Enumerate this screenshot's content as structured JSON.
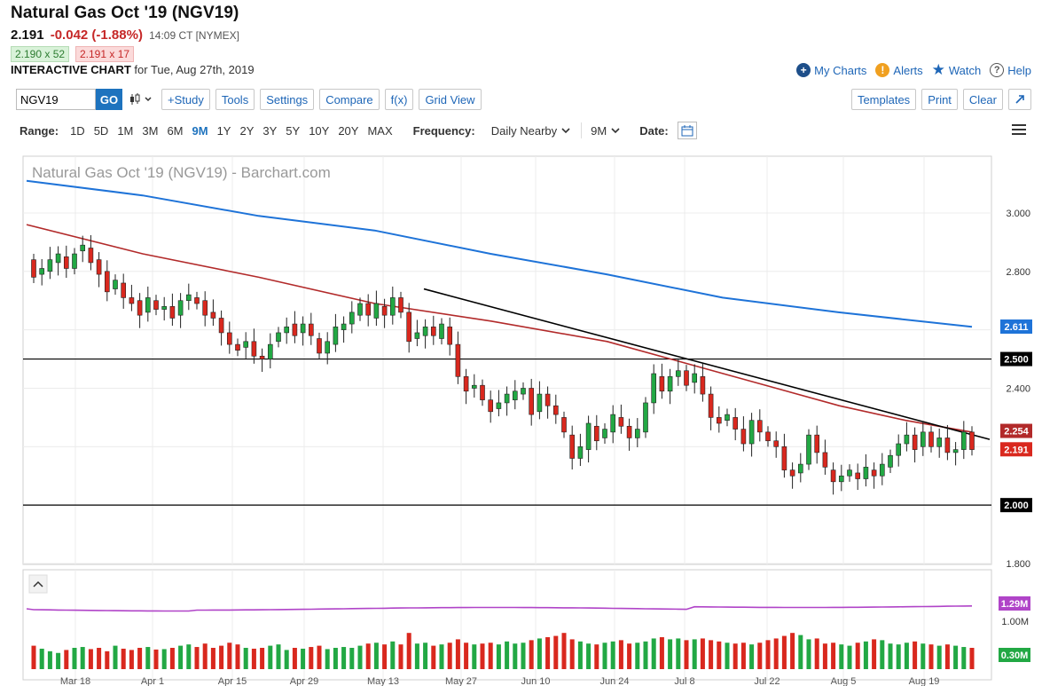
{
  "quote": {
    "title": "Natural Gas Oct '19 (NGV19)",
    "last": "2.191",
    "change": "-0.042 (-1.88%)",
    "time": "14:09 CT [NYMEX]",
    "bid": "2.190 x 52",
    "ask": "2.191 x 17",
    "chart_label": "INTERACTIVE CHART",
    "chart_date": "for Tue, Aug 27th, 2019"
  },
  "links": {
    "my_charts": "My Charts",
    "alerts": "Alerts",
    "watch": "Watch",
    "help": "Help"
  },
  "toolbar": {
    "symbol": "NGV19",
    "go": "GO",
    "study": "+Study",
    "tools": "Tools",
    "settings": "Settings",
    "compare": "Compare",
    "fx": "f(x)",
    "grid_view": "Grid View",
    "templates": "Templates",
    "print": "Print",
    "clear": "Clear"
  },
  "range": {
    "label": "Range:",
    "options": [
      "1D",
      "5D",
      "1M",
      "3M",
      "6M",
      "9M",
      "1Y",
      "2Y",
      "3Y",
      "5Y",
      "10Y",
      "20Y",
      "MAX"
    ],
    "active": "9M",
    "frequency_label": "Frequency:",
    "frequency": "Daily Nearby",
    "period": "9M",
    "date_label": "Date:"
  },
  "colors": {
    "up": "#22a844",
    "down": "#d9281e",
    "ma_slow": "#1e73d8",
    "ma_fast": "#b22a2a",
    "volume_ma": "#b044c8",
    "link": "#1e66b7",
    "bg": "#ffffff"
  },
  "chart_data": {
    "type": "candlestick",
    "title": "Natural Gas Oct '19 (NGV19) - Barchart.com",
    "y_ticks": [
      "1.800",
      "2.000",
      "2.200",
      "2.400",
      "2.600",
      "2.800",
      "3.000"
    ],
    "ylim": [
      1.8,
      3.0
    ],
    "x_ticks": [
      "Mar 18",
      "Apr 1",
      "Apr 15",
      "Apr 29",
      "May 13",
      "May 27",
      "Jun 10",
      "Jun 24",
      "Jul 8",
      "Jul 22",
      "Aug 5",
      "Aug 19"
    ],
    "price_labels": {
      "ma_200": "2.611",
      "level_high": "2.500",
      "ma_50": "2.254",
      "last": "2.191",
      "level_low": "2.000"
    },
    "horizontal_lines": [
      2.5,
      2.0
    ],
    "trendline": {
      "from": [
        "May 17",
        2.74
      ],
      "to": [
        "Aug 27",
        2.225
      ]
    },
    "candles": [
      [
        2.84,
        2.78
      ],
      [
        2.79,
        2.81
      ],
      [
        2.8,
        2.84
      ],
      [
        2.83,
        2.86
      ],
      [
        2.85,
        2.81
      ],
      [
        2.81,
        2.86
      ],
      [
        2.87,
        2.89
      ],
      [
        2.88,
        2.83
      ],
      [
        2.84,
        2.79
      ],
      [
        2.8,
        2.73
      ],
      [
        2.74,
        2.77
      ],
      [
        2.76,
        2.71
      ],
      [
        2.71,
        2.69
      ],
      [
        2.7,
        2.65
      ],
      [
        2.66,
        2.71
      ],
      [
        2.7,
        2.67
      ],
      [
        2.67,
        2.68
      ],
      [
        2.68,
        2.64
      ],
      [
        2.65,
        2.7
      ],
      [
        2.7,
        2.72
      ],
      [
        2.71,
        2.69
      ],
      [
        2.7,
        2.65
      ],
      [
        2.66,
        2.64
      ],
      [
        2.64,
        2.59
      ],
      [
        2.59,
        2.55
      ],
      [
        2.55,
        2.53
      ],
      [
        2.54,
        2.56
      ],
      [
        2.56,
        2.51
      ],
      [
        2.51,
        2.5
      ],
      [
        2.5,
        2.55
      ],
      [
        2.56,
        2.59
      ],
      [
        2.59,
        2.61
      ],
      [
        2.62,
        2.58
      ],
      [
        2.59,
        2.62
      ],
      [
        2.62,
        2.58
      ],
      [
        2.57,
        2.52
      ],
      [
        2.52,
        2.56
      ],
      [
        2.55,
        2.61
      ],
      [
        2.6,
        2.62
      ],
      [
        2.62,
        2.66
      ],
      [
        2.65,
        2.69
      ],
      [
        2.69,
        2.65
      ],
      [
        2.64,
        2.69
      ],
      [
        2.68,
        2.65
      ],
      [
        2.65,
        2.71
      ],
      [
        2.71,
        2.66
      ],
      [
        2.66,
        2.56
      ],
      [
        2.57,
        2.59
      ],
      [
        2.58,
        2.61
      ],
      [
        2.61,
        2.58
      ],
      [
        2.57,
        2.62
      ],
      [
        2.61,
        2.55
      ],
      [
        2.55,
        2.44
      ],
      [
        2.44,
        2.39
      ],
      [
        2.4,
        2.41
      ],
      [
        2.41,
        2.36
      ],
      [
        2.36,
        2.32
      ],
      [
        2.33,
        2.35
      ],
      [
        2.35,
        2.38
      ],
      [
        2.36,
        2.39
      ],
      [
        2.38,
        2.4
      ],
      [
        2.4,
        2.31
      ],
      [
        2.32,
        2.38
      ],
      [
        2.38,
        2.34
      ],
      [
        2.34,
        2.31
      ],
      [
        2.3,
        2.25
      ],
      [
        2.24,
        2.16
      ],
      [
        2.16,
        2.2
      ],
      [
        2.19,
        2.28
      ],
      [
        2.27,
        2.22
      ],
      [
        2.23,
        2.26
      ],
      [
        2.25,
        2.31
      ],
      [
        2.3,
        2.27
      ],
      [
        2.27,
        2.23
      ],
      [
        2.23,
        2.26
      ],
      [
        2.25,
        2.35
      ],
      [
        2.35,
        2.45
      ],
      [
        2.44,
        2.39
      ],
      [
        2.39,
        2.44
      ],
      [
        2.44,
        2.46
      ],
      [
        2.46,
        2.41
      ],
      [
        2.42,
        2.45
      ],
      [
        2.44,
        2.38
      ],
      [
        2.38,
        2.3
      ],
      [
        2.3,
        2.28
      ],
      [
        2.29,
        2.31
      ],
      [
        2.3,
        2.26
      ],
      [
        2.26,
        2.21
      ],
      [
        2.21,
        2.29
      ],
      [
        2.29,
        2.25
      ],
      [
        2.25,
        2.22
      ],
      [
        2.22,
        2.2
      ],
      [
        2.2,
        2.12
      ],
      [
        2.12,
        2.1
      ],
      [
        2.11,
        2.14
      ],
      [
        2.14,
        2.24
      ],
      [
        2.24,
        2.18
      ],
      [
        2.18,
        2.13
      ],
      [
        2.12,
        2.08
      ],
      [
        2.08,
        2.1
      ],
      [
        2.1,
        2.12
      ],
      [
        2.11,
        2.09
      ],
      [
        2.09,
        2.13
      ],
      [
        2.12,
        2.1
      ],
      [
        2.1,
        2.14
      ],
      [
        2.13,
        2.17
      ],
      [
        2.17,
        2.21
      ],
      [
        2.21,
        2.24
      ],
      [
        2.24,
        2.19
      ],
      [
        2.2,
        2.25
      ],
      [
        2.25,
        2.2
      ],
      [
        2.2,
        2.23
      ],
      [
        2.23,
        2.18
      ],
      [
        2.18,
        2.19
      ],
      [
        2.19,
        2.25
      ],
      [
        2.25,
        2.19
      ]
    ],
    "ma_fast": [
      [
        0,
        2.96
      ],
      [
        14,
        2.86
      ],
      [
        28,
        2.78
      ],
      [
        42,
        2.69
      ],
      [
        56,
        2.63
      ],
      [
        70,
        2.56
      ],
      [
        84,
        2.45
      ],
      [
        98,
        2.34
      ],
      [
        106,
        2.29
      ],
      [
        114,
        2.25
      ]
    ],
    "ma_slow": [
      [
        0,
        3.11
      ],
      [
        20,
        3.06
      ],
      [
        40,
        2.99
      ],
      [
        60,
        2.94
      ],
      [
        80,
        2.86
      ],
      [
        100,
        2.79
      ],
      [
        120,
        2.71
      ],
      [
        140,
        2.66
      ],
      [
        163,
        2.61
      ]
    ],
    "volume": {
      "labels": [
        "0.30M",
        "1.00M"
      ],
      "ma_label": "1.29M",
      "bars": [
        0.55,
        0.48,
        0.42,
        0.38,
        0.45,
        0.5,
        0.52,
        0.47,
        0.5,
        0.42,
        0.55,
        0.48,
        0.45,
        0.5,
        0.52,
        0.46,
        0.47,
        0.5,
        0.55,
        0.58,
        0.52,
        0.6,
        0.5,
        0.55,
        0.62,
        0.58,
        0.5,
        0.48,
        0.5,
        0.55,
        0.58,
        0.45,
        0.5,
        0.48,
        0.52,
        0.55,
        0.47,
        0.5,
        0.52,
        0.5,
        0.55,
        0.6,
        0.62,
        0.58,
        0.65,
        0.58,
        0.85,
        0.6,
        0.62,
        0.55,
        0.58,
        0.62,
        0.7,
        0.62,
        0.58,
        0.6,
        0.62,
        0.58,
        0.65,
        0.6,
        0.62,
        0.68,
        0.72,
        0.75,
        0.78,
        0.85,
        0.7,
        0.65,
        0.6,
        0.58,
        0.62,
        0.65,
        0.68,
        0.6,
        0.62,
        0.65,
        0.72,
        0.75,
        0.7,
        0.72,
        0.68,
        0.7,
        0.72,
        0.68,
        0.65,
        0.62,
        0.6,
        0.62,
        0.58,
        0.62,
        0.68,
        0.72,
        0.78,
        0.85,
        0.8,
        0.7,
        0.72,
        0.6,
        0.62,
        0.58,
        0.55,
        0.62,
        0.65,
        0.7,
        0.68,
        0.6,
        0.58,
        0.62,
        0.65,
        0.6,
        0.58,
        0.55,
        0.58,
        0.55,
        0.52,
        0.5
      ]
    }
  }
}
